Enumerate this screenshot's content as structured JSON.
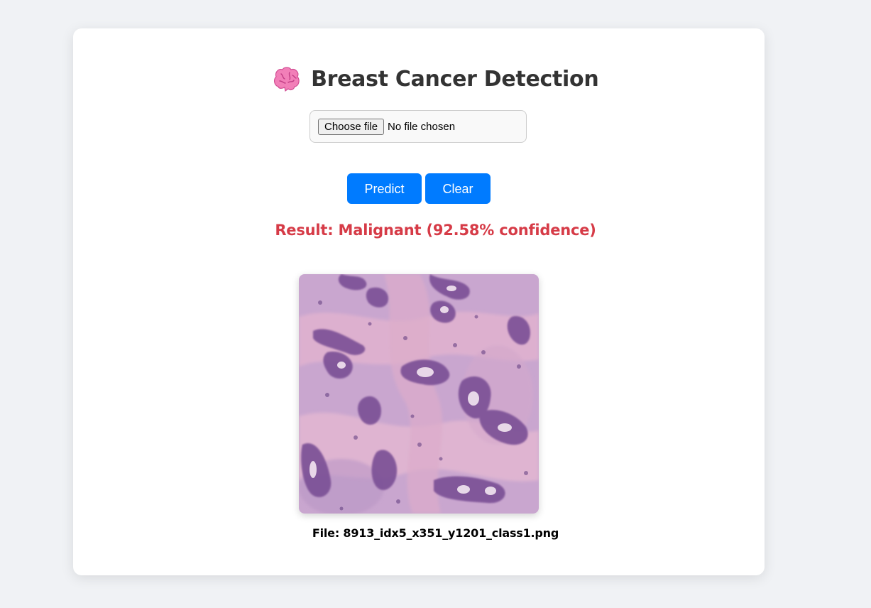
{
  "header": {
    "title": "Breast Cancer Detection",
    "icon": "brain-icon"
  },
  "upload": {
    "choose_label": "Choose file",
    "status": "No file chosen"
  },
  "actions": {
    "predict_label": "Predict",
    "clear_label": "Clear"
  },
  "result": {
    "text": "Result: Malignant (92.58% confidence)",
    "color": "#d63b47"
  },
  "preview": {
    "caption": "File: 8913_idx5_x351_y1201_class1.png"
  },
  "colors": {
    "page_bg": "#f0f2f5",
    "card_bg": "#ffffff",
    "button": "#007bff",
    "title": "#333333"
  }
}
